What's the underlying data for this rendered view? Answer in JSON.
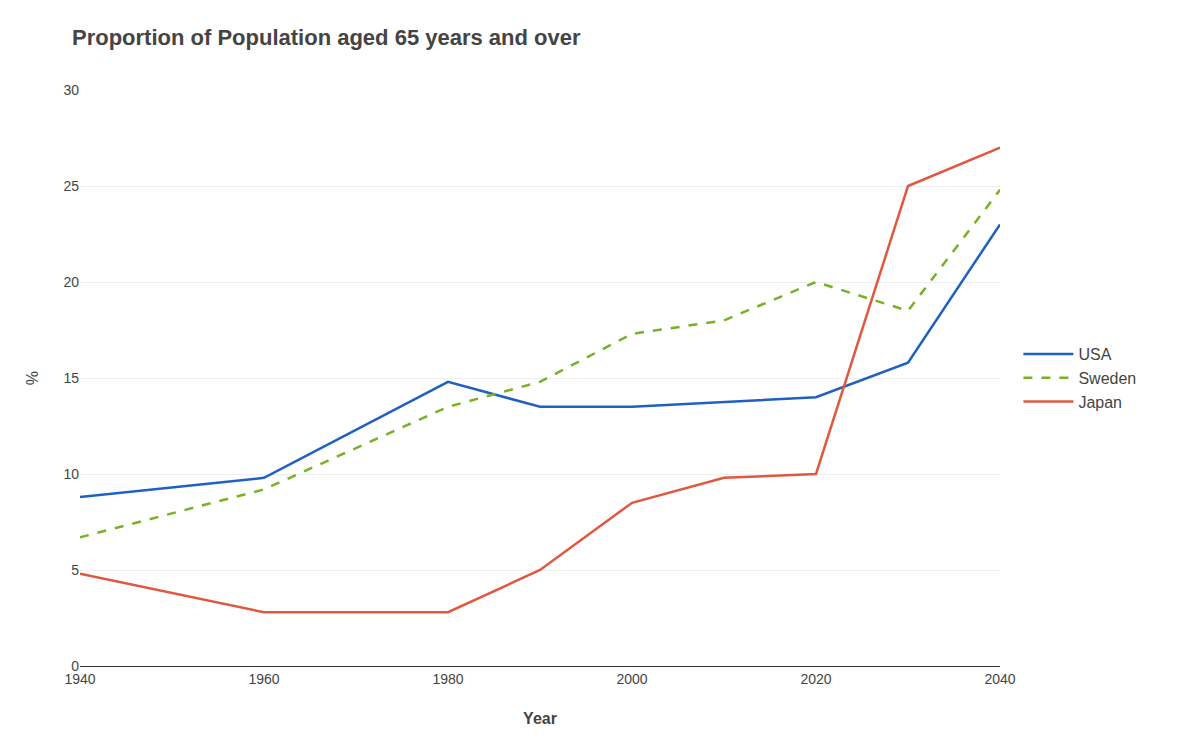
{
  "chart_data": {
    "type": "line",
    "title": "Proportion of Population aged 65 years and over",
    "x_label": "Year",
    "y_label": "%",
    "series": [
      {
        "name": "USA",
        "color": "#2060c0",
        "line_style": "solid",
        "x": [
          1940,
          1960,
          1980,
          1990,
          2000,
          2020,
          2030,
          2040
        ],
        "values": [
          8.8,
          9.8,
          14.8,
          13.5,
          13.5,
          14.0,
          15.8,
          23.0
        ]
      },
      {
        "name": "Sweden",
        "color": "#7ab026",
        "line_style": "dashed",
        "x": [
          1940,
          1960,
          1980,
          1990,
          2000,
          2010,
          2020,
          2030,
          2040
        ],
        "values": [
          6.7,
          9.2,
          13.5,
          14.8,
          17.3,
          18.0,
          20.0,
          18.5,
          24.8
        ]
      },
      {
        "name": "Japan",
        "color": "#e05840",
        "line_style": "solid",
        "x": [
          1940,
          1960,
          1980,
          1990,
          2000,
          2010,
          2020,
          2030,
          2040
        ],
        "values": [
          4.8,
          2.8,
          2.8,
          5.0,
          8.5,
          9.8,
          10.0,
          25.0,
          27.0
        ]
      }
    ],
    "xlim": [
      1940,
      2040
    ],
    "ylim": [
      0,
      30
    ],
    "xticks": [
      1940,
      1960,
      1980,
      2000,
      2020,
      2040
    ],
    "yticks": [
      0,
      5,
      10,
      15,
      20,
      25,
      30
    ],
    "grid": true,
    "legend": "right"
  }
}
